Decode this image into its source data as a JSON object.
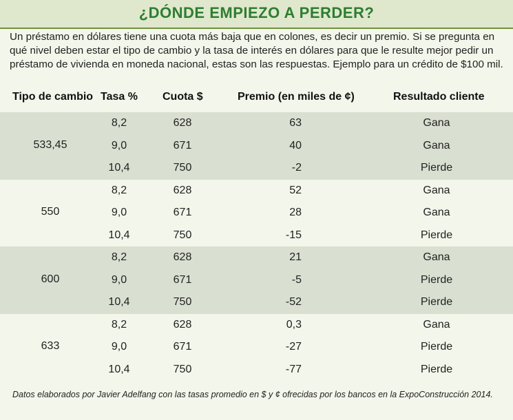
{
  "title": "¿DÓNDE EMPIEZO A PERDER?",
  "intro": "Un préstamo en dólares tiene una cuota más baja que en colones, es decir un premio. Si se pregunta en qué nivel deben estar el tipo de cambio y la tasa de interés en dólares para que le resulte mejor pedir un préstamo de vivienda en moneda nacional, estas son las respuestas. Ejemplo para un crédito de $100 mil.",
  "colors": {
    "title": "#2e7d32",
    "shaded_band": "#d9dfd1",
    "background": "#f3f6ea"
  },
  "chart_data": {
    "type": "table",
    "columns": [
      "Tipo de cambio",
      "Tasa %",
      "Cuota $",
      "Premio (en miles de ¢)",
      "Resultado cliente"
    ],
    "groups": [
      {
        "tipo_de_cambio": "533,45",
        "rows": [
          {
            "tasa": "8,2",
            "cuota": "628",
            "premio": "63",
            "resultado": "Gana"
          },
          {
            "tasa": "9,0",
            "cuota": "671",
            "premio": "40",
            "resultado": "Gana"
          },
          {
            "tasa": "10,4",
            "cuota": "750",
            "premio": "-2",
            "resultado": "Pierde"
          }
        ]
      },
      {
        "tipo_de_cambio": "550",
        "rows": [
          {
            "tasa": "8,2",
            "cuota": "628",
            "premio": "52",
            "resultado": "Gana"
          },
          {
            "tasa": "9,0",
            "cuota": "671",
            "premio": "28",
            "resultado": "Gana"
          },
          {
            "tasa": "10,4",
            "cuota": "750",
            "premio": "-15",
            "resultado": "Pierde"
          }
        ]
      },
      {
        "tipo_de_cambio": "600",
        "rows": [
          {
            "tasa": "8,2",
            "cuota": "628",
            "premio": "21",
            "resultado": "Gana"
          },
          {
            "tasa": "9,0",
            "cuota": "671",
            "premio": "-5",
            "resultado": "Pierde"
          },
          {
            "tasa": "10,4",
            "cuota": "750",
            "premio": "-52",
            "resultado": "Pierde"
          }
        ]
      },
      {
        "tipo_de_cambio": "633",
        "rows": [
          {
            "tasa": "8,2",
            "cuota": "628",
            "premio": "0,3",
            "resultado": "Gana"
          },
          {
            "tasa": "9,0",
            "cuota": "671",
            "premio": "-27",
            "resultado": "Pierde"
          },
          {
            "tasa": "10,4",
            "cuota": "750",
            "premio": "-77",
            "resultado": "Pierde"
          }
        ]
      }
    ]
  },
  "footer": "Datos elaborados por Javier Adelfang con las tasas promedio en $ y ¢ ofrecidas por los bancos en la ExpoConstrucción 2014."
}
